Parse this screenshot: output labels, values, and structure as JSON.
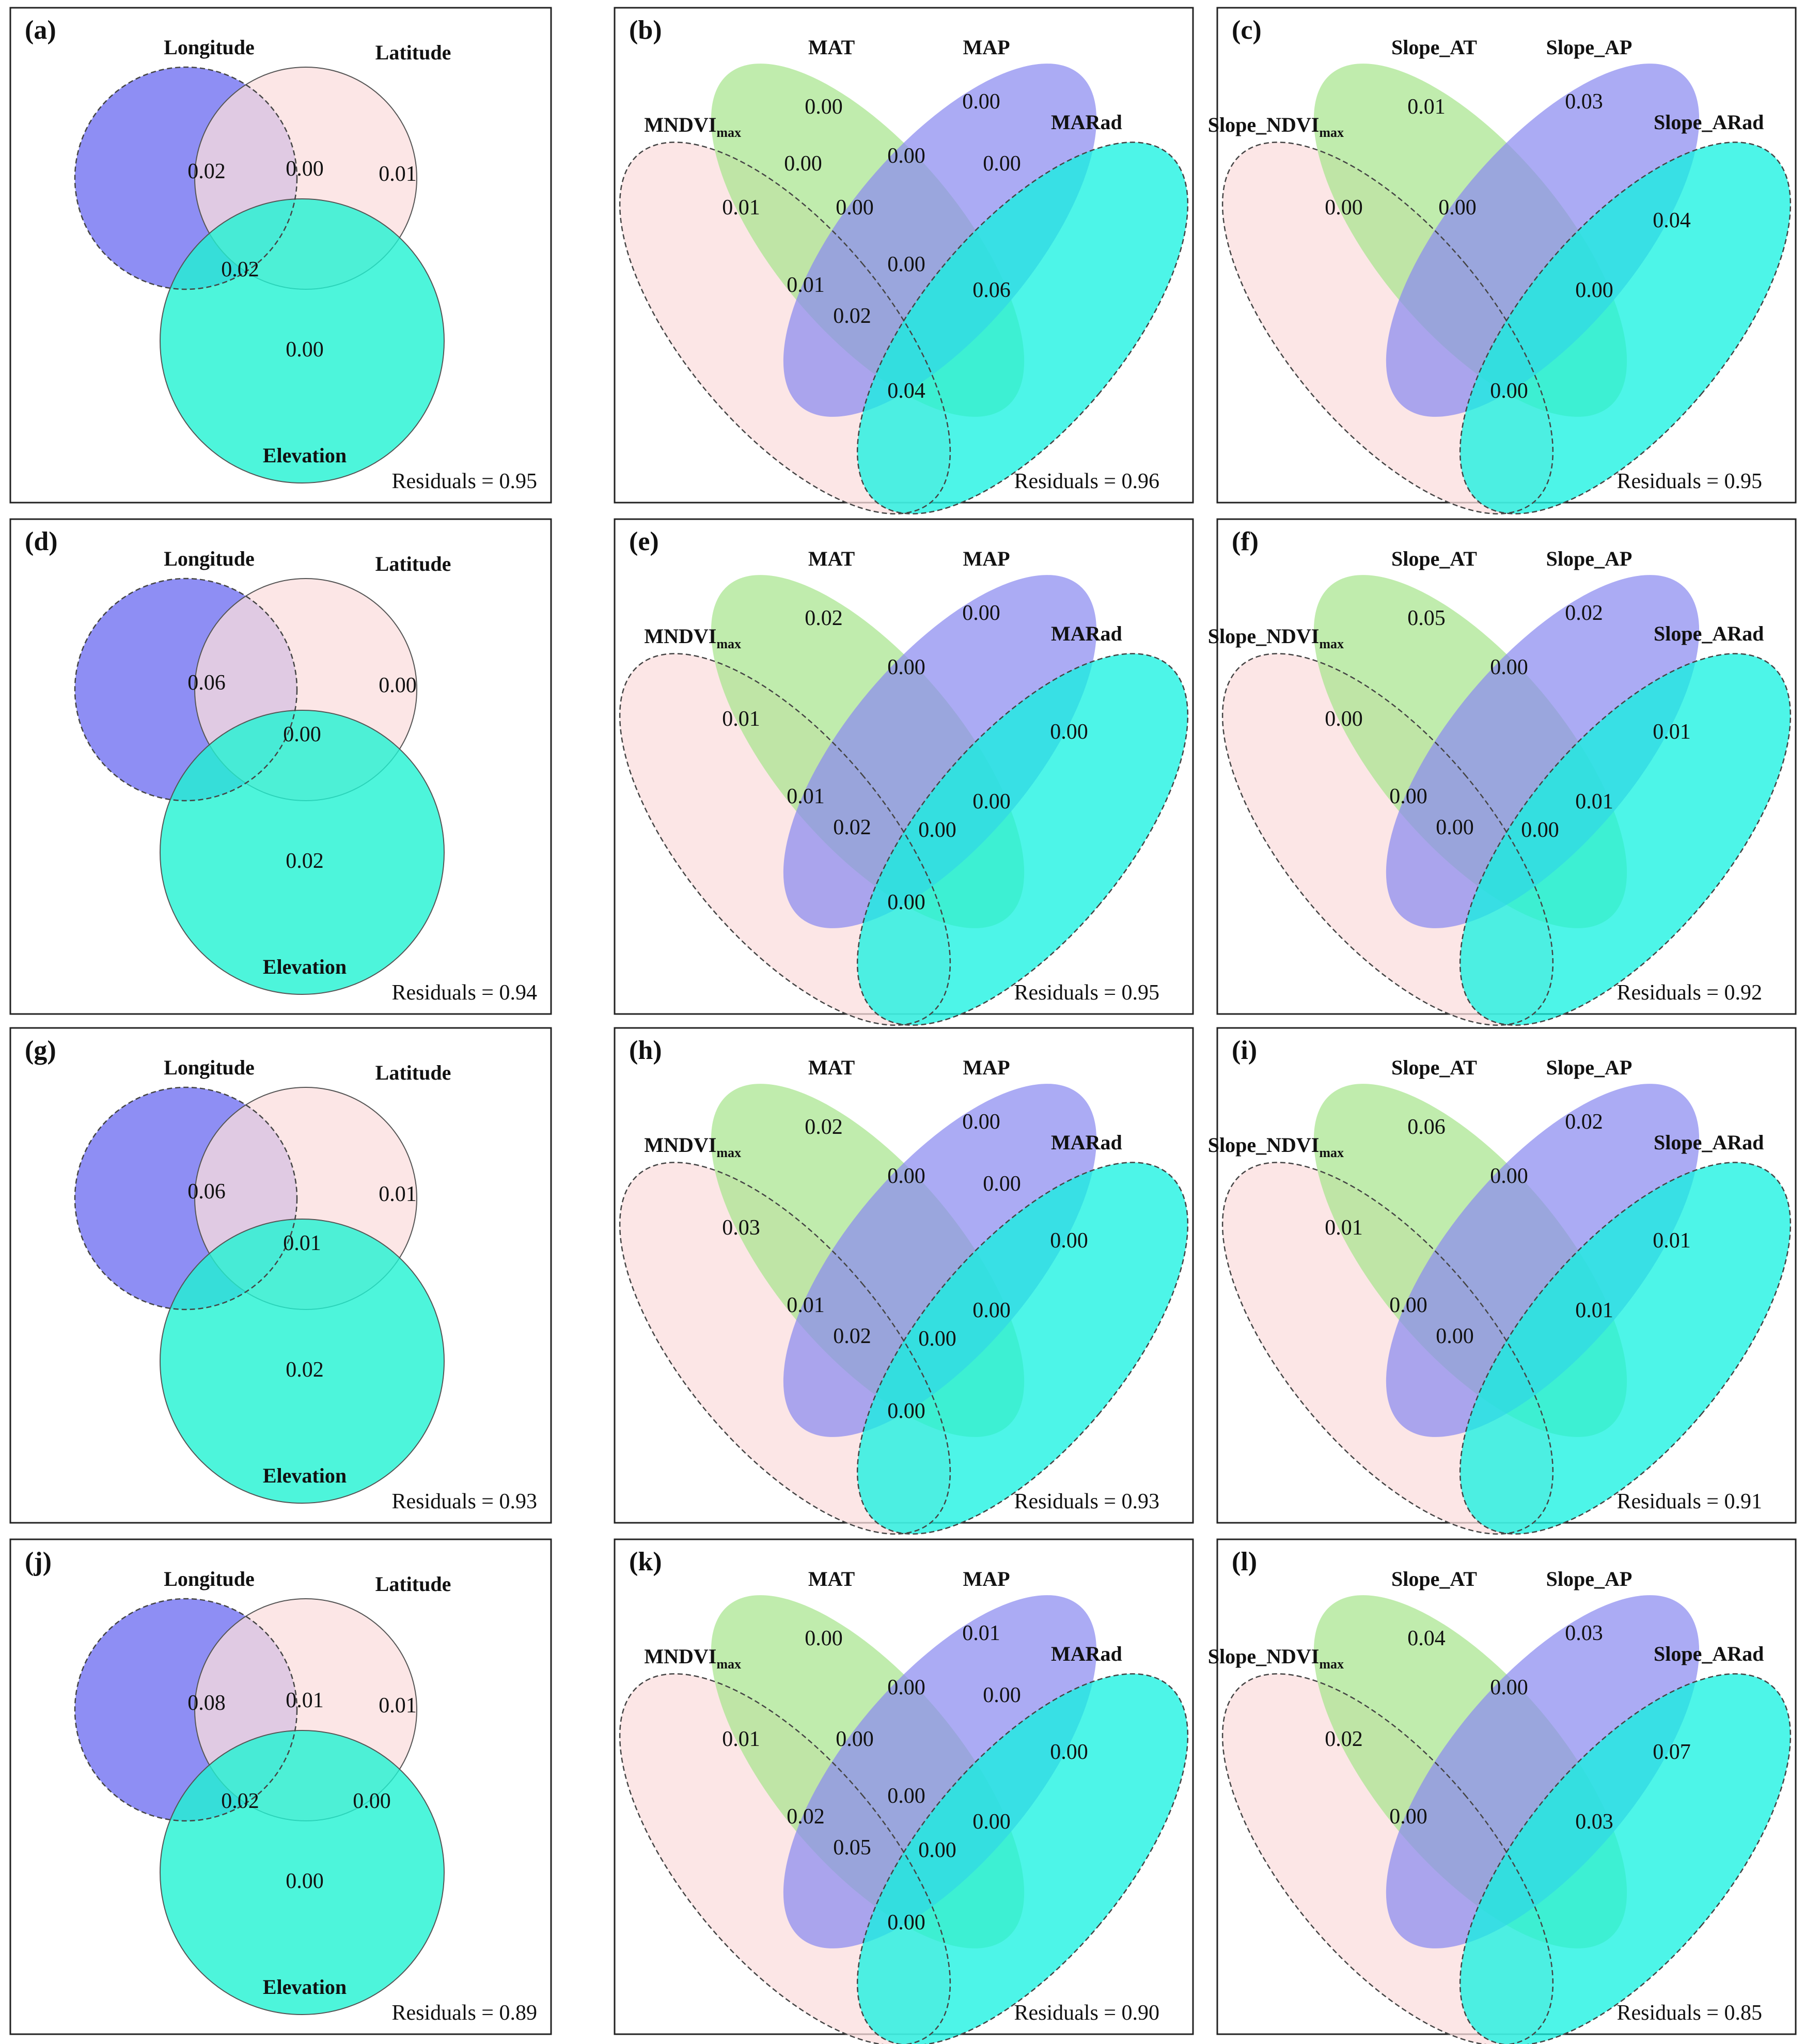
{
  "colors": {
    "blue": "#7a7af2",
    "pink": "#fbdede",
    "cyan": "#21f2d2",
    "green": "#a8e58d",
    "purple": "#8b8bf0",
    "aqua": "#12f2e0"
  },
  "panels": [
    {
      "id": "a",
      "label": "(a)",
      "type": "venn3",
      "sets": [
        "Longitude",
        "Latitude",
        "Elevation"
      ],
      "values": {
        "a_only": "0.02",
        "ab": "0.00",
        "b_only": "0.01",
        "ac": "0.02",
        "abc": "",
        "bc": "",
        "c_only": "0.00"
      },
      "residuals": "Residuals = 0.95"
    },
    {
      "id": "b",
      "label": "(b)",
      "type": "venn4",
      "sets": {
        "s1": "MNDVI",
        "s1_sub": "max",
        "s2": "MAT",
        "s3": "MAP",
        "s4": "MARad"
      },
      "values": {
        "green": "0.00",
        "blue": "0.00",
        "pink": "0.01",
        "cyan": "",
        "green_blue": "0.00",
        "blue_cyan": "0.00",
        "pink_green": "0.00",
        "pink_green_blue": "0.00",
        "center": "0.00",
        "pink_green_cyan": "0.01",
        "green_blue_cyan": "0.06",
        "pink_cyan_low": "0.02",
        "pink_cyan": "0.04"
      },
      "residuals": "Residuals = 0.96"
    },
    {
      "id": "c",
      "label": "(c)",
      "type": "venn4",
      "sets": {
        "s1": "Slope_NDVI",
        "s1_sub": "max",
        "s2": "Slope_AT",
        "s3": "Slope_AP",
        "s4": "Slope_ARad"
      },
      "values": {
        "green": "0.01",
        "blue": "0.03",
        "pink": "0.00",
        "cyan": "0.04",
        "green_blue": "",
        "blue_cyan": "",
        "pink_green": "",
        "pink_green_blue": "0.00",
        "center": "",
        "pink_green_cyan": "",
        "green_blue_cyan": "0.00",
        "pink_cyan_low": "",
        "pink_cyan": "0.00"
      },
      "residuals": "Residuals = 0.95"
    },
    {
      "id": "d",
      "label": "(d)",
      "type": "venn3",
      "sets": [
        "Longitude",
        "Latitude",
        "Elevation"
      ],
      "values": {
        "a_only": "0.06",
        "ab": "",
        "b_only": "0.00",
        "ac": "",
        "abc": "0.00",
        "bc": "",
        "c_only": "0.02"
      },
      "residuals": "Residuals = 0.94"
    },
    {
      "id": "e",
      "label": "(e)",
      "type": "venn4",
      "sets": {
        "s1": "MNDVI",
        "s1_sub": "max",
        "s2": "MAT",
        "s3": "MAP",
        "s4": "MARad"
      },
      "values": {
        "green": "0.02",
        "blue": "0.00",
        "pink": "0.01",
        "cyan": "0.00",
        "green_blue": "0.00",
        "blue_cyan": "",
        "pink_green": "",
        "pink_green_blue": "",
        "center": "",
        "pink_green_cyan": "0.01",
        "green_blue_cyan": "0.00",
        "pink_cyan_low": "0.02",
        "center_low": "0.00",
        "pink_cyan": "0.00"
      },
      "residuals": "Residuals = 0.95"
    },
    {
      "id": "f",
      "label": "(f)",
      "type": "venn4",
      "sets": {
        "s1": "Slope_NDVI",
        "s1_sub": "max",
        "s2": "Slope_AT",
        "s3": "Slope_AP",
        "s4": "Slope_ARad"
      },
      "values": {
        "green": "0.05",
        "blue": "0.02",
        "pink": "0.00",
        "cyan": "0.01",
        "green_blue": "0.00",
        "blue_cyan": "",
        "pink_green": "",
        "pink_green_blue": "",
        "center": "",
        "pink_green_cyan": "0.00",
        "green_blue_cyan": "0.01",
        "pink_cyan_low": "0.00",
        "center_low": "0.00",
        "pink_cyan": ""
      },
      "residuals": "Residuals = 0.92"
    },
    {
      "id": "g",
      "label": "(g)",
      "type": "venn3",
      "sets": [
        "Longitude",
        "Latitude",
        "Elevation"
      ],
      "values": {
        "a_only": "0.06",
        "ab": "",
        "b_only": "0.01",
        "ac": "",
        "abc": "0.01",
        "bc": "",
        "c_only": "0.02"
      },
      "residuals": "Residuals = 0.93"
    },
    {
      "id": "h",
      "label": "(h)",
      "type": "venn4",
      "sets": {
        "s1": "MNDVI",
        "s1_sub": "max",
        "s2": "MAT",
        "s3": "MAP",
        "s4": "MARad"
      },
      "values": {
        "green": "0.02",
        "blue": "0.00",
        "pink": "0.03",
        "cyan": "0.00",
        "green_blue": "0.00",
        "blue_cyan": "0.00",
        "pink_green": "",
        "pink_green_blue": "",
        "center": "",
        "pink_green_cyan": "0.01",
        "green_blue_cyan": "0.00",
        "pink_cyan_low": "0.02",
        "center_low": "0.00",
        "pink_cyan": "0.00"
      },
      "residuals": "Residuals = 0.93"
    },
    {
      "id": "i",
      "label": "(i)",
      "type": "venn4",
      "sets": {
        "s1": "Slope_NDVI",
        "s1_sub": "max",
        "s2": "Slope_AT",
        "s3": "Slope_AP",
        "s4": "Slope_ARad"
      },
      "values": {
        "green": "0.06",
        "blue": "0.02",
        "pink": "0.01",
        "cyan": "0.01",
        "green_blue": "0.00",
        "blue_cyan": "",
        "pink_green": "",
        "pink_green_blue": "",
        "center": "",
        "pink_green_cyan": "0.00",
        "green_blue_cyan": "0.01",
        "pink_cyan_low": "0.00",
        "center_low": "",
        "pink_cyan": ""
      },
      "residuals": "Residuals = 0.91"
    },
    {
      "id": "j",
      "label": "(j)",
      "type": "venn3",
      "sets": [
        "Longitude",
        "Latitude",
        "Elevation"
      ],
      "values": {
        "a_only": "0.08",
        "ab": "0.01",
        "b_only": "0.01",
        "ac": "0.02",
        "abc": "",
        "bc": "0.00",
        "c_only": "0.00"
      },
      "residuals": "Residuals = 0.89"
    },
    {
      "id": "k",
      "label": "(k)",
      "type": "venn4",
      "sets": {
        "s1": "MNDVI",
        "s1_sub": "max",
        "s2": "MAT",
        "s3": "MAP",
        "s4": "MARad"
      },
      "values": {
        "green": "0.00",
        "blue": "0.01",
        "pink": "0.01",
        "cyan": "0.00",
        "green_blue": "0.00",
        "blue_cyan": "0.00",
        "pink_green": "",
        "pink_green_blue": "0.00",
        "center": "0.00",
        "pink_green_cyan": "0.02",
        "green_blue_cyan": "0.00",
        "pink_cyan_low": "0.05",
        "center_low": "0.00",
        "pink_cyan": "0.00"
      },
      "residuals": "Residuals = 0.90"
    },
    {
      "id": "l",
      "label": "(l)",
      "type": "venn4",
      "sets": {
        "s1": "Slope_NDVI",
        "s1_sub": "max",
        "s2": "Slope_AT",
        "s3": "Slope_AP",
        "s4": "Slope_ARad"
      },
      "values": {
        "green": "0.04",
        "blue": "0.03",
        "pink": "0.02",
        "cyan": "0.07",
        "green_blue": "0.00",
        "blue_cyan": "",
        "pink_green": "",
        "pink_green_blue": "",
        "center": "",
        "pink_green_cyan": "0.00",
        "green_blue_cyan": "0.03",
        "pink_cyan_low": "",
        "center_low": "",
        "pink_cyan": ""
      },
      "residuals": "Residuals = 0.85"
    }
  ]
}
